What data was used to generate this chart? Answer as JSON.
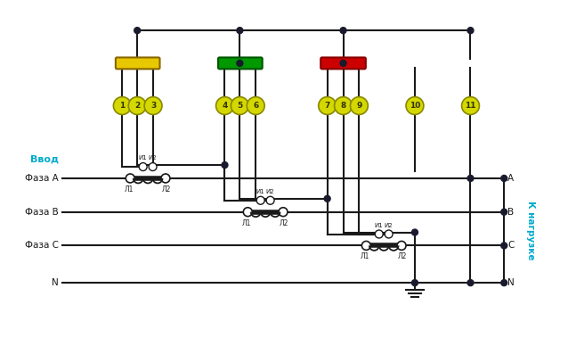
{
  "bg_color": "#ffffff",
  "line_color": "#1a1a1a",
  "terminal_fill": "#d4d800",
  "terminal_border": "#888800",
  "bus_yellow": "#e8c800",
  "bus_green": "#009900",
  "bus_red": "#cc0000",
  "dot_color": "#1a1a2e",
  "terminal_numbers": [
    "1",
    "2",
    "3",
    "4",
    "5",
    "6",
    "7",
    "8",
    "9",
    "10",
    "11"
  ],
  "vvod_label": "Ввод",
  "nagruzka_label": "К нагрузке",
  "phase_labels_left": [
    "Фаза A",
    "Фаза B",
    "Фаза C",
    "N"
  ],
  "phase_labels_right": [
    "A",
    "B",
    "C",
    "N"
  ],
  "label_color": "#00aacc"
}
